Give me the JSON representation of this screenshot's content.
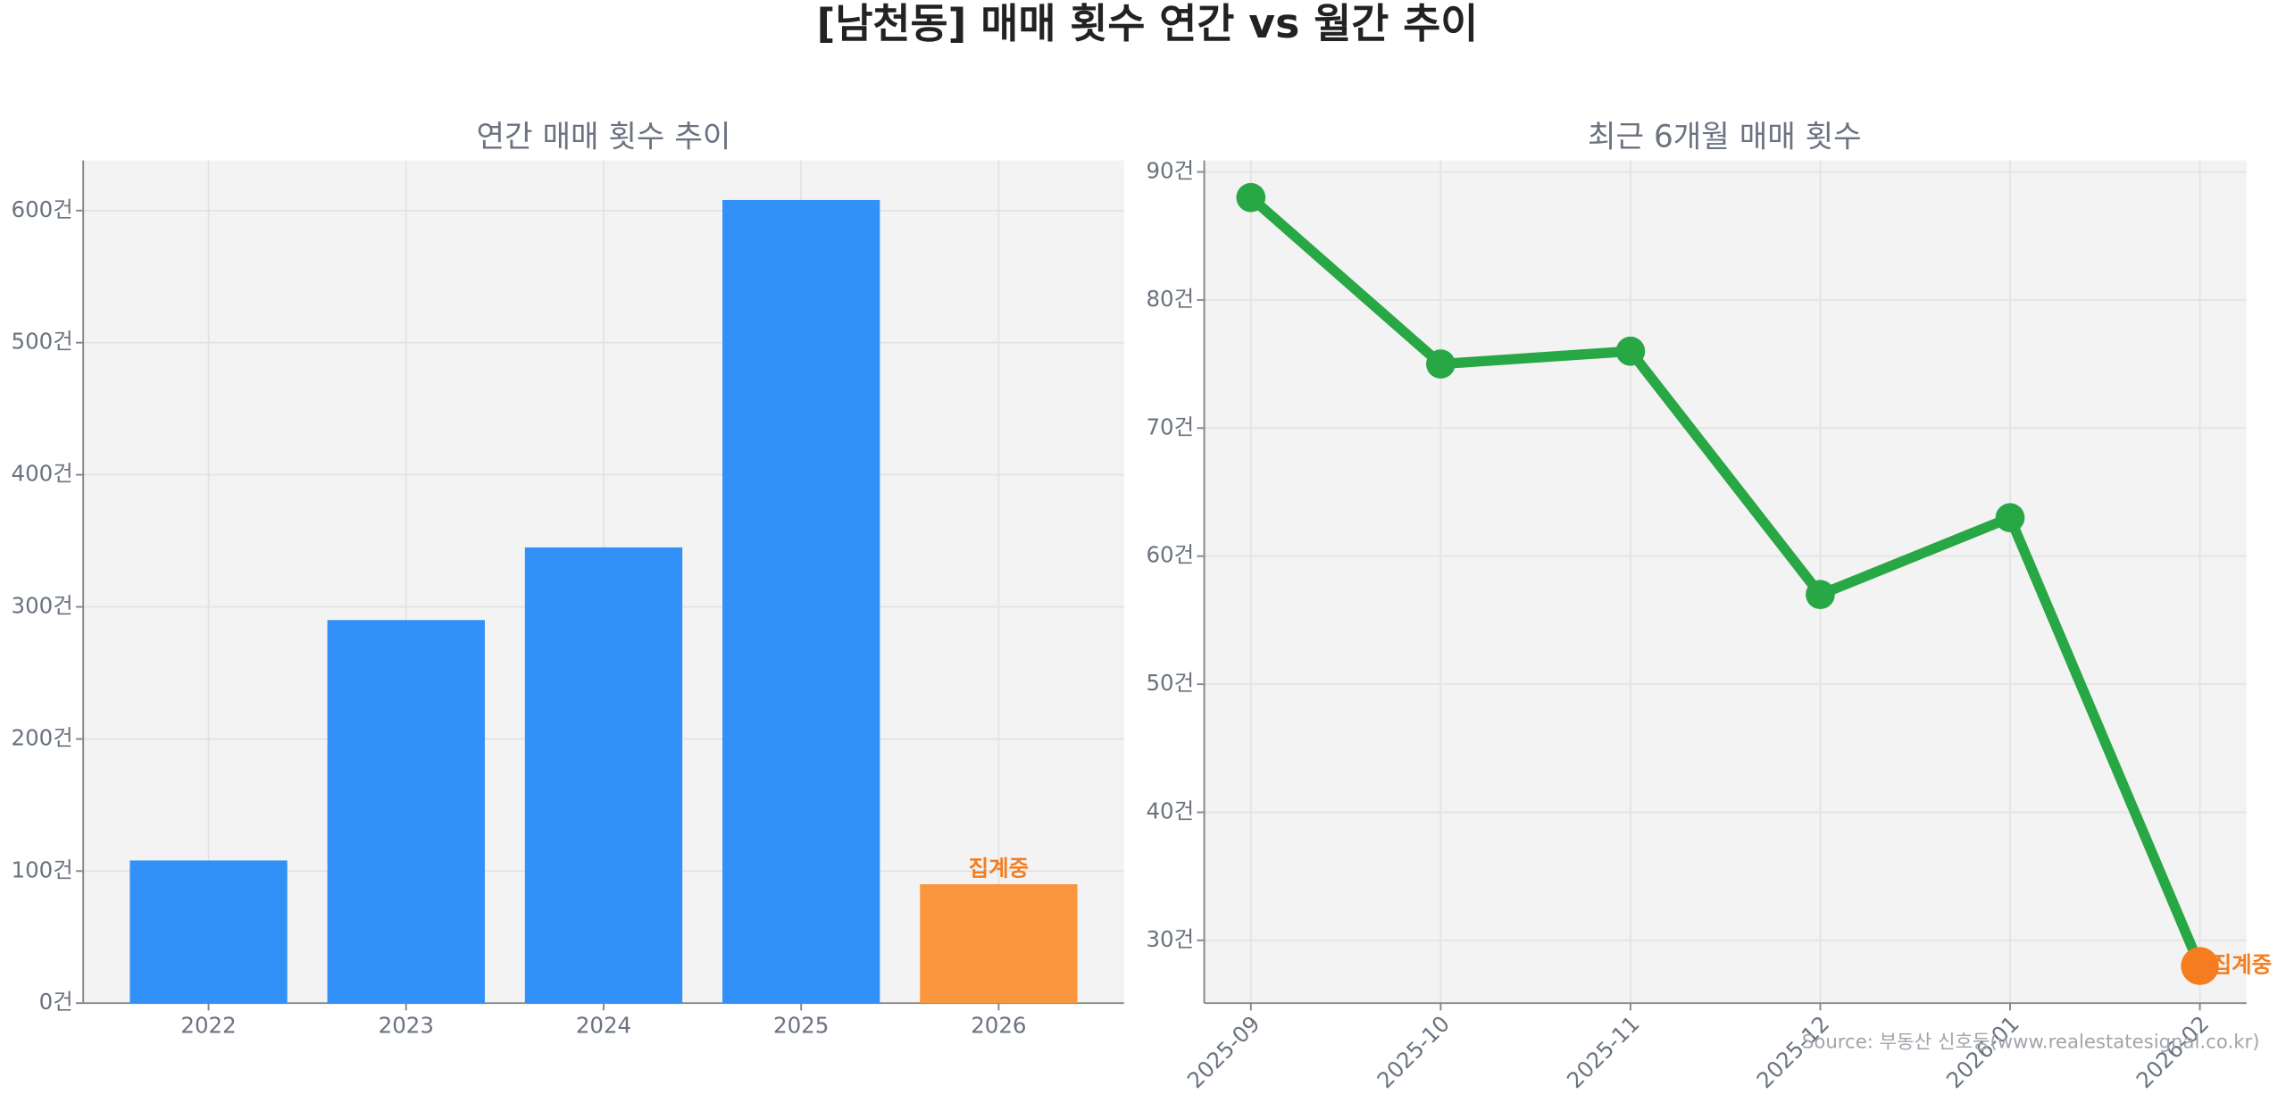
{
  "title": "[남천동] 매매 횟수 연간 vs 월간 추이",
  "source": "Source: 부동산 신호등(www.realestatesignal.co.kr)",
  "chart_data": [
    {
      "type": "bar",
      "title": "연간 매매 횟수 추이",
      "categories": [
        "2022",
        "2023",
        "2024",
        "2025",
        "2026"
      ],
      "values": [
        108,
        290,
        345,
        608,
        90
      ],
      "colors": [
        "#3191f9",
        "#3191f9",
        "#3191f9",
        "#3191f9",
        "#f9963e"
      ],
      "annotation": "집계중",
      "annotation_color": "#f57c1f",
      "ylim": [
        0,
        638
      ],
      "yticks": [
        {
          "value": 0,
          "label": "0건"
        },
        {
          "value": 100,
          "label": "100건"
        },
        {
          "value": 200,
          "label": "200건"
        },
        {
          "value": 300,
          "label": "300건"
        },
        {
          "value": 400,
          "label": "400건"
        },
        {
          "value": 500,
          "label": "500건"
        },
        {
          "value": 600,
          "label": "600건"
        }
      ],
      "grid": true
    },
    {
      "type": "line",
      "title": "최근 6개월 매매 횟수",
      "categories": [
        "2025-09",
        "2025-10",
        "2025-11",
        "2025-12",
        "2026-01",
        "2026-02"
      ],
      "values": [
        88,
        75,
        76,
        57,
        63,
        28
      ],
      "color": "#28a745",
      "marker_colors": [
        "#28a745",
        "#28a745",
        "#28a745",
        "#28a745",
        "#28a745",
        "#f57c1f"
      ],
      "annotation": "집계중",
      "annotation_color": "#f57c1f",
      "ylim": [
        25.1,
        90.9
      ],
      "yticks": [
        {
          "value": 30,
          "label": "30건"
        },
        {
          "value": 40,
          "label": "40건"
        },
        {
          "value": 50,
          "label": "50건"
        },
        {
          "value": 60,
          "label": "60건"
        },
        {
          "value": 70,
          "label": "70건"
        },
        {
          "value": 80,
          "label": "80건"
        },
        {
          "value": 90,
          "label": "90건"
        }
      ],
      "grid": true
    }
  ]
}
